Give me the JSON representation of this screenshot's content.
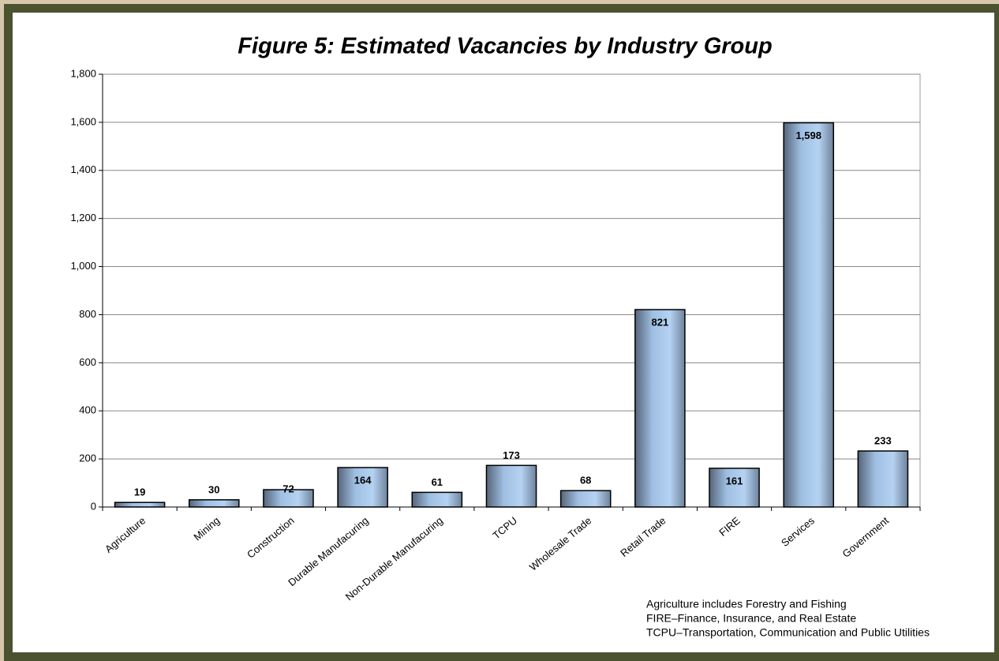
{
  "chart_data": {
    "type": "bar",
    "title": "Figure 5: Estimated Vacancies by Industry Group",
    "categories": [
      "Agriculture",
      "Mining",
      "Construction",
      "Durable Manufacuring",
      "Non-Durable Manufacuring",
      "TCPU",
      "Wholesale Trade",
      "Retail Trade",
      "FIRE",
      "Services",
      "Government"
    ],
    "values": [
      19,
      30,
      72,
      164,
      61,
      173,
      68,
      821,
      161,
      1598,
      233
    ],
    "value_labels": [
      "19",
      "30",
      "72",
      "164",
      "61",
      "173",
      "68",
      "821",
      "161",
      "1,598",
      "233"
    ],
    "color": "#9fc2e8",
    "ylim": [
      0,
      1800
    ],
    "yticks": [
      0,
      200,
      400,
      600,
      800,
      {
        "value": 1000,
        "label": "1,000"
      },
      {
        "value": 1200,
        "label": "1,200"
      },
      {
        "value": 1400,
        "label": "1,400"
      },
      {
        "value": 1600,
        "label": "1,600"
      },
      {
        "value": 1800,
        "label": "1,800"
      }
    ],
    "grid": true,
    "notes": [
      "Agriculture includes Forestry and Fishing",
      "FIRE–Finance, Insurance, and Real Estate",
      "TCPU–Transportation, Communication and Public Utilities"
    ]
  }
}
